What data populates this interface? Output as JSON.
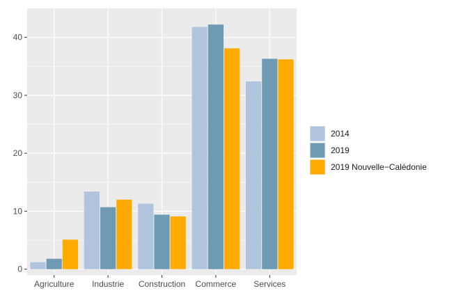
{
  "chart_data": {
    "type": "bar",
    "title": "",
    "xlabel": "",
    "ylabel": "",
    "categories": [
      "Agriculture",
      "Industrie",
      "Construction",
      "Commerce",
      "Services"
    ],
    "series": [
      {
        "name": "2014",
        "color": "#b0c4de",
        "values": [
          1.2,
          13.4,
          11.3,
          41.8,
          32.4
        ]
      },
      {
        "name": "2019",
        "color": "#6f9ab3",
        "values": [
          1.8,
          10.7,
          9.4,
          42.2,
          36.3
        ]
      },
      {
        "name": "2019 Nouvelle−Calédonie",
        "color": "#ffaa00",
        "values": [
          5.1,
          12.0,
          9.1,
          38.1,
          36.2
        ]
      }
    ],
    "ylim": [
      -1,
      45
    ],
    "yticks": [
      0,
      10,
      20,
      30,
      40
    ],
    "grid": true,
    "panel_background": "#ebebeb",
    "legend_position": "right"
  }
}
